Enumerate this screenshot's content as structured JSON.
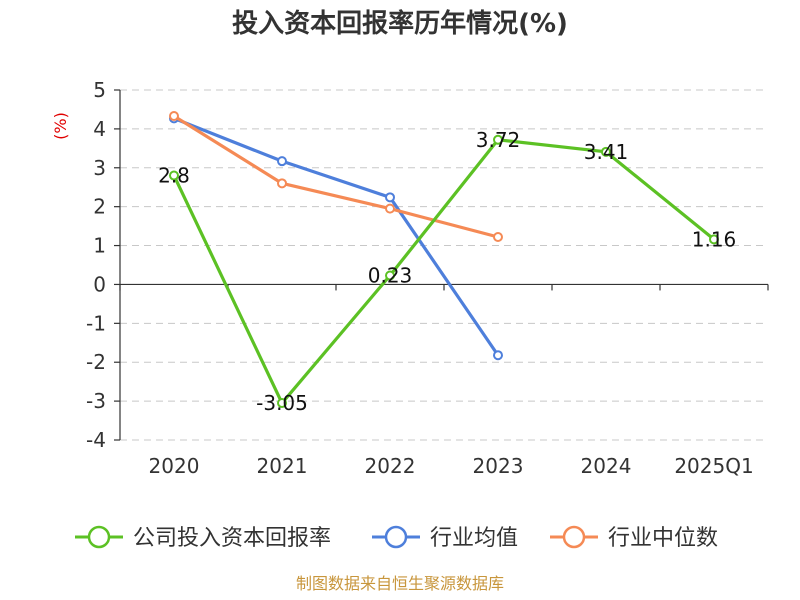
{
  "chart_data": {
    "type": "line",
    "title": "投入资本回报率历年情况(%)",
    "ylabel": "(%)",
    "categories": [
      "2020",
      "2021",
      "2022",
      "2023",
      "2024",
      "2025Q1"
    ],
    "ylim": [
      -4,
      5
    ],
    "yticks": [
      "5",
      "4",
      "3",
      "2",
      "1",
      "0",
      "-1",
      "-2",
      "-3",
      "-4"
    ],
    "grid": "horizontal-dashed",
    "legend_position": "bottom",
    "series": [
      {
        "name": "公司投入资本回报率",
        "color": "#5cc124",
        "values": [
          2.8,
          -3.05,
          0.23,
          3.72,
          3.41,
          1.16
        ],
        "labels": [
          "2.8",
          "-3.05",
          "0.23",
          "3.72",
          "3.41",
          "1.16"
        ]
      },
      {
        "name": "行业均值",
        "color": "#4e7fdb",
        "values": [
          4.27,
          3.17,
          2.24,
          -1.82,
          null,
          null
        ]
      },
      {
        "name": "行业中位数",
        "color": "#f58a55",
        "values": [
          4.33,
          2.6,
          1.95,
          1.22,
          null,
          null
        ]
      }
    ],
    "source": "制图数据来自恒生聚源数据库"
  }
}
